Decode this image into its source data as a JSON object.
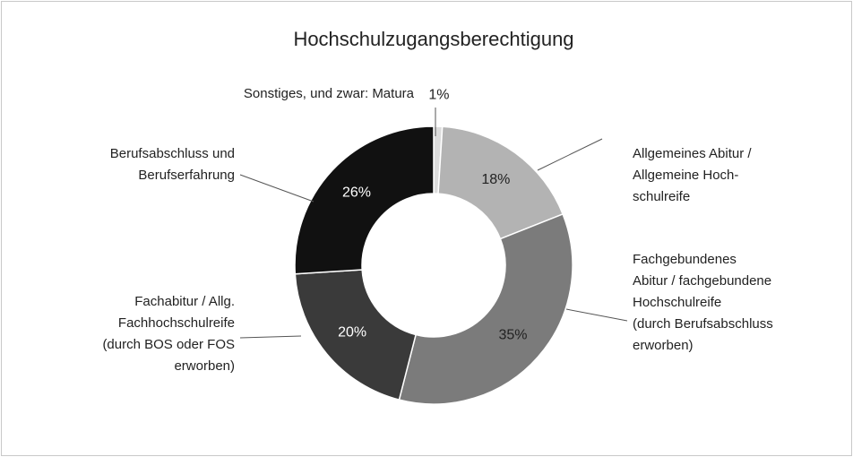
{
  "chart_data": {
    "type": "donut",
    "title": "Hochschulzugangsberechtigung",
    "categories": [
      [
        "Sonstiges, und zwar: Matura"
      ],
      [
        "Allgemeines Abitur /",
        "Allgemeine Hoch-",
        "schulreife"
      ],
      [
        "Fachgebundenes",
        "Abitur / fachgebundene",
        "Hochschulreife",
        "(durch Berufsabschluss",
        "erworben)"
      ],
      [
        "Fachabitur / Allg.",
        "Fachhochschulreife",
        "(durch BOS oder FOS",
        "erworben)"
      ],
      [
        "Berufsabschluss und",
        "Berufserfahrung"
      ]
    ],
    "values": [
      1,
      18,
      35,
      20,
      26
    ],
    "value_labels": [
      "1%",
      "18%",
      "35%",
      "20%",
      "26%"
    ],
    "colors": [
      "#dcdcdc",
      "#b3b3b3",
      "#7b7b7b",
      "#3a3a3a",
      "#111111"
    ],
    "label_colors": [
      "#222222",
      "#222222",
      "#222222",
      "#ffffff",
      "#ffffff"
    ]
  }
}
